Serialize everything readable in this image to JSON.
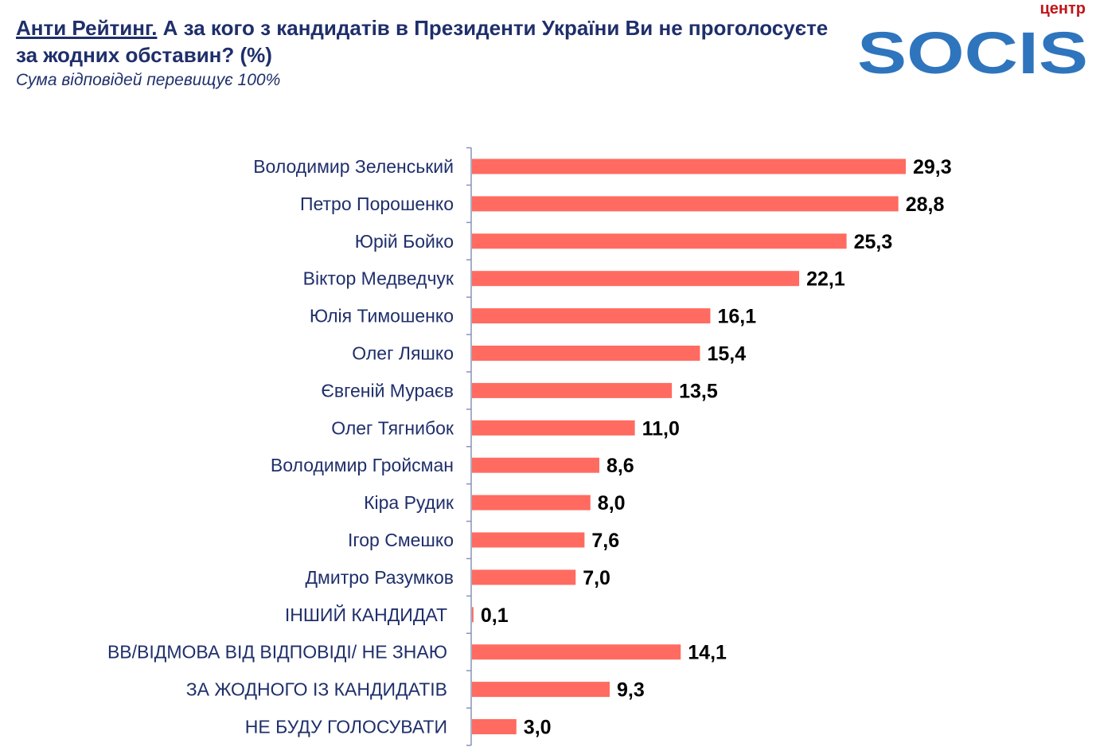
{
  "header": {
    "title_highlight": "Анти Рейтинг.",
    "title_rest": " А за кого з кандидатів в Президенти України Ви не проголосуєте за жодних обставин? (%)",
    "subtitle": "Сума відповідей перевищує 100%"
  },
  "logo": {
    "top_text": "центр",
    "brand": "SOCIS",
    "top_color": "#c0161c",
    "brand_color": "#2f75bd"
  },
  "chart_data": {
    "type": "bar",
    "orientation": "horizontal",
    "categories": [
      "Володимир Зеленський",
      "Петро Порошенко",
      "Юрій Бойко",
      "Віктор Медведчук",
      "Юлія Тимошенко",
      "Олег Ляшко",
      "Євгеній Мураєв",
      "Олег Тягнибок",
      "Володимир Гройсман",
      "Кіра Рудик",
      "Ігор Смешко",
      "Дмитро Разумков",
      "ІНШИЙ КАНДИДАТ",
      "ВВ/ВІДМОВА ВІД ВІДПОВІДІ/ НЕ ЗНАЮ",
      "ЗА ЖОДНОГО ІЗ КАНДИДАТІВ",
      "НЕ БУДУ ГОЛОСУВАТИ"
    ],
    "values": [
      29.3,
      28.8,
      25.3,
      22.1,
      16.1,
      15.4,
      13.5,
      11.0,
      8.6,
      8.0,
      7.6,
      7.0,
      0.1,
      14.1,
      9.3,
      3.0
    ],
    "value_labels": [
      "29,3",
      "28,8",
      "25,3",
      "22,1",
      "16,1",
      "15,4",
      "13,5",
      "11,0",
      "8,6",
      "8,0",
      "7,6",
      "7,0",
      "0,1",
      "14,1",
      "9,3",
      "3,0"
    ],
    "bar_color": "#ff6b60",
    "label_color": "#1f2f6b",
    "xlim": [
      0,
      30
    ],
    "grid": false,
    "legend": "none"
  }
}
